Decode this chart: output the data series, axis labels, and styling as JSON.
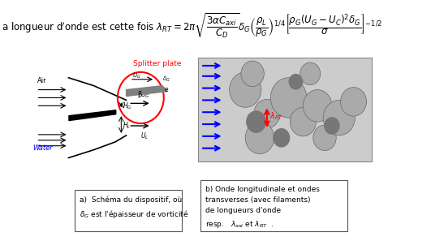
{
  "title_formula": "a longueur d'onde est cette fois $\\lambda_{RT} = 2\\pi\\sqrt{\\dfrac{3\\alpha C_{axi}}{C_D}}\\delta_G\\left(\\dfrac{\\rho_L}{\\rho_G}\\right)^{1/4}\\left[\\dfrac{\\rho_G(U_G - U_C)^2\\delta_G}{\\sigma}\\right]^{-1/2}$",
  "caption_a": "a)  Schéma du dispositif, où\n$\\delta_G$ est l’épaisseur de vorticité",
  "caption_b": "b) Onde longitudinale et ondes\ntransverses (avec filaments)\nde longueurs d’onde\nresp.   $\\lambda_{axi}$ et $\\lambda_{RT}$  .",
  "bg_color": "#ffffff",
  "text_color": "#000000",
  "formula_fontsize": 9,
  "caption_fontsize": 7.5
}
